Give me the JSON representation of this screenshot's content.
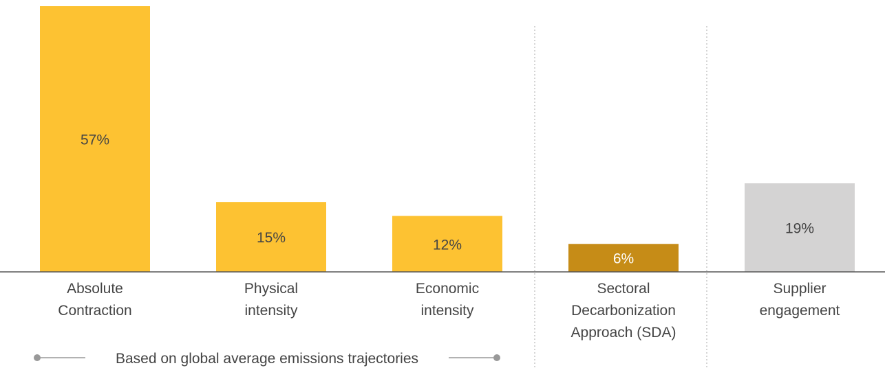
{
  "chart_data": {
    "type": "bar",
    "categories": [
      [
        "Absolute",
        "Contraction"
      ],
      [
        "Physical",
        "intensity"
      ],
      [
        "Economic",
        "intensity"
      ],
      [
        "Sectoral",
        "Decarbonization",
        "Approach (SDA)"
      ],
      [
        "Supplier",
        "engagement"
      ]
    ],
    "values": [
      57,
      15,
      12,
      6,
      19
    ],
    "data_labels": [
      "57%",
      "15%",
      "12%",
      "6%",
      "19%"
    ],
    "colors": [
      "#FDC232",
      "#FDC232",
      "#FDC232",
      "#C68C17",
      "#D4D3D3"
    ],
    "label_colors": [
      "#444444",
      "#444444",
      "#444444",
      "#ffffff",
      "#444444"
    ],
    "ylim": [
      0,
      57
    ],
    "grid": false,
    "group_separators": "dotted vertical lines between Economic intensity / Sectoral and Sectoral / Supplier",
    "annotation": "Based on global average emissions trajectories"
  }
}
